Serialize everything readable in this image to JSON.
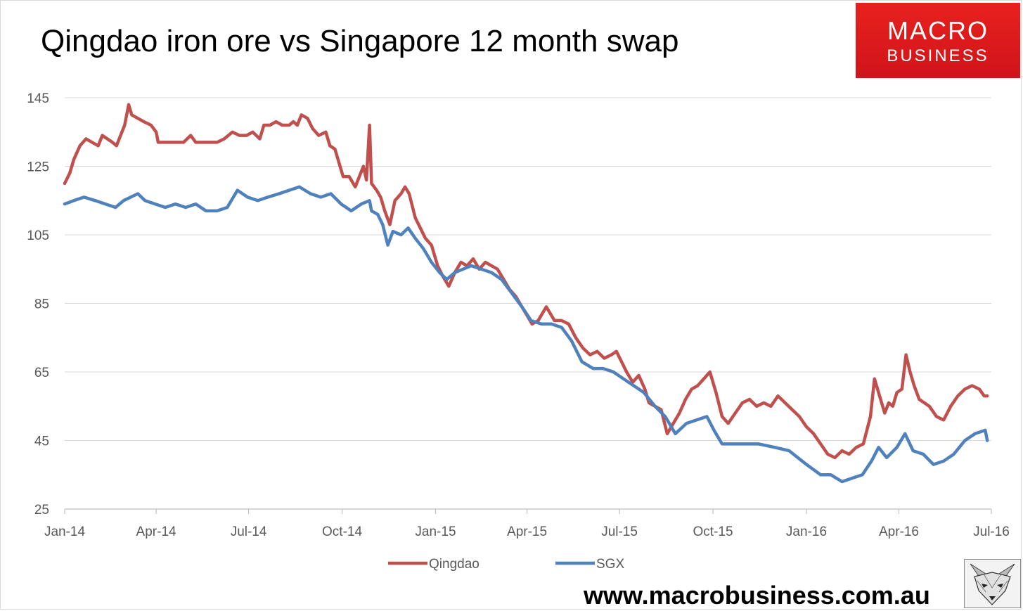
{
  "brand": {
    "line1": "MACRO",
    "line2": "BUSINESS",
    "color": "#e01b1c"
  },
  "website": "www.macrobusiness.com.au",
  "mascot_icon": "fox-icon",
  "chart_data": {
    "type": "line",
    "title": "Qingdao iron ore vs Singapore 12 month swap",
    "xlabel": "",
    "ylabel": "",
    "ylim": [
      25,
      145
    ],
    "y_ticks": [
      25,
      45,
      65,
      85,
      105,
      125,
      145
    ],
    "x_ticks": [
      {
        "label": "Jan-14",
        "date": "2014-01-01"
      },
      {
        "label": "Apr-14",
        "date": "2014-04-01"
      },
      {
        "label": "Jul-14",
        "date": "2014-07-01"
      },
      {
        "label": "Oct-14",
        "date": "2014-10-01"
      },
      {
        "label": "Jan-15",
        "date": "2015-01-01"
      },
      {
        "label": "Apr-15",
        "date": "2015-04-01"
      },
      {
        "label": "Jul-15",
        "date": "2015-07-01"
      },
      {
        "label": "Oct-15",
        "date": "2015-10-01"
      },
      {
        "label": "Jan-16",
        "date": "2016-01-01"
      },
      {
        "label": "Apr-16",
        "date": "2016-04-01"
      },
      {
        "label": "Jul-16",
        "date": "2016-07-01"
      }
    ],
    "xlim": [
      "2014-01-01",
      "2016-07-01"
    ],
    "grid": "horizontal",
    "legend": "bottom",
    "series": [
      {
        "name": "Qingdao",
        "color": "#c0504d",
        "points": [
          [
            "2014-01-01",
            120
          ],
          [
            "2014-01-06",
            123
          ],
          [
            "2014-01-10",
            127
          ],
          [
            "2014-01-16",
            131
          ],
          [
            "2014-01-22",
            133
          ],
          [
            "2014-01-28",
            132
          ],
          [
            "2014-02-03",
            131
          ],
          [
            "2014-02-07",
            134
          ],
          [
            "2014-02-12",
            133
          ],
          [
            "2014-02-17",
            132
          ],
          [
            "2014-02-21",
            131
          ],
          [
            "2014-02-25",
            134
          ],
          [
            "2014-03-01",
            137
          ],
          [
            "2014-03-05",
            143
          ],
          [
            "2014-03-08",
            140
          ],
          [
            "2014-03-14",
            139
          ],
          [
            "2014-03-20",
            138
          ],
          [
            "2014-03-27",
            137
          ],
          [
            "2014-04-01",
            135
          ],
          [
            "2014-04-03",
            132
          ],
          [
            "2014-04-10",
            132
          ],
          [
            "2014-04-20",
            132
          ],
          [
            "2014-04-28",
            132
          ],
          [
            "2014-05-05",
            134
          ],
          [
            "2014-05-10",
            132
          ],
          [
            "2014-05-20",
            132
          ],
          [
            "2014-05-31",
            132
          ],
          [
            "2014-06-07",
            133
          ],
          [
            "2014-06-15",
            135
          ],
          [
            "2014-06-22",
            134
          ],
          [
            "2014-06-29",
            134
          ],
          [
            "2014-07-05",
            135
          ],
          [
            "2014-07-12",
            133
          ],
          [
            "2014-07-16",
            137
          ],
          [
            "2014-07-22",
            137
          ],
          [
            "2014-07-28",
            138
          ],
          [
            "2014-08-03",
            137
          ],
          [
            "2014-08-10",
            137
          ],
          [
            "2014-08-14",
            138
          ],
          [
            "2014-08-18",
            137
          ],
          [
            "2014-08-22",
            140
          ],
          [
            "2014-08-28",
            139
          ],
          [
            "2014-09-02",
            136
          ],
          [
            "2014-09-08",
            134
          ],
          [
            "2014-09-15",
            135
          ],
          [
            "2014-09-19",
            131
          ],
          [
            "2014-09-24",
            130
          ],
          [
            "2014-09-28",
            126
          ],
          [
            "2014-10-02",
            122
          ],
          [
            "2014-10-08",
            122
          ],
          [
            "2014-10-14",
            119
          ],
          [
            "2014-10-18",
            122
          ],
          [
            "2014-10-22",
            125
          ],
          [
            "2014-10-25",
            121
          ],
          [
            "2014-10-28",
            137
          ],
          [
            "2014-10-30",
            120
          ],
          [
            "2014-11-04",
            118
          ],
          [
            "2014-11-08",
            116
          ],
          [
            "2014-11-12",
            112
          ],
          [
            "2014-11-17",
            108
          ],
          [
            "2014-11-22",
            115
          ],
          [
            "2014-11-28",
            117
          ],
          [
            "2014-12-02",
            119
          ],
          [
            "2014-12-06",
            117
          ],
          [
            "2014-12-12",
            110
          ],
          [
            "2014-12-17",
            107
          ],
          [
            "2014-12-22",
            104
          ],
          [
            "2014-12-28",
            102
          ],
          [
            "2015-01-03",
            96
          ],
          [
            "2015-01-08",
            93
          ],
          [
            "2015-01-14",
            90
          ],
          [
            "2015-01-20",
            94
          ],
          [
            "2015-01-26",
            97
          ],
          [
            "2015-02-01",
            96
          ],
          [
            "2015-02-07",
            98
          ],
          [
            "2015-02-13",
            95
          ],
          [
            "2015-02-19",
            97
          ],
          [
            "2015-02-25",
            96
          ],
          [
            "2015-03-03",
            95
          ],
          [
            "2015-03-09",
            92
          ],
          [
            "2015-03-15",
            89
          ],
          [
            "2015-03-21",
            87
          ],
          [
            "2015-03-27",
            84
          ],
          [
            "2015-04-02",
            81
          ],
          [
            "2015-04-06",
            79
          ],
          [
            "2015-04-12",
            80
          ],
          [
            "2015-04-16",
            82
          ],
          [
            "2015-04-20",
            84
          ],
          [
            "2015-04-24",
            82
          ],
          [
            "2015-04-28",
            80
          ],
          [
            "2015-05-05",
            80
          ],
          [
            "2015-05-12",
            79
          ],
          [
            "2015-05-19",
            75
          ],
          [
            "2015-05-26",
            72
          ],
          [
            "2015-06-02",
            70
          ],
          [
            "2015-06-09",
            71
          ],
          [
            "2015-06-16",
            69
          ],
          [
            "2015-06-23",
            70
          ],
          [
            "2015-06-28",
            71
          ],
          [
            "2015-07-03",
            68
          ],
          [
            "2015-07-08",
            65
          ],
          [
            "2015-07-14",
            62
          ],
          [
            "2015-07-20",
            64
          ],
          [
            "2015-07-26",
            60
          ],
          [
            "2015-07-30",
            56
          ],
          [
            "2015-08-05",
            55
          ],
          [
            "2015-08-11",
            54
          ],
          [
            "2015-08-17",
            47
          ],
          [
            "2015-08-23",
            50
          ],
          [
            "2015-08-29",
            53
          ],
          [
            "2015-09-04",
            57
          ],
          [
            "2015-09-10",
            60
          ],
          [
            "2015-09-16",
            61
          ],
          [
            "2015-09-22",
            63
          ],
          [
            "2015-09-28",
            65
          ],
          [
            "2015-10-04",
            59
          ],
          [
            "2015-10-10",
            52
          ],
          [
            "2015-10-16",
            50
          ],
          [
            "2015-10-23",
            53
          ],
          [
            "2015-10-30",
            56
          ],
          [
            "2015-11-06",
            57
          ],
          [
            "2015-11-13",
            55
          ],
          [
            "2015-11-20",
            56
          ],
          [
            "2015-11-27",
            55
          ],
          [
            "2015-12-04",
            58
          ],
          [
            "2015-12-11",
            56
          ],
          [
            "2015-12-18",
            54
          ],
          [
            "2015-12-25",
            52
          ],
          [
            "2016-01-01",
            49
          ],
          [
            "2016-01-08",
            47
          ],
          [
            "2016-01-15",
            44
          ],
          [
            "2016-01-22",
            41
          ],
          [
            "2016-01-29",
            40
          ],
          [
            "2016-02-05",
            42
          ],
          [
            "2016-02-12",
            41
          ],
          [
            "2016-02-19",
            43
          ],
          [
            "2016-02-26",
            44
          ],
          [
            "2016-03-04",
            52
          ],
          [
            "2016-03-08",
            63
          ],
          [
            "2016-03-13",
            58
          ],
          [
            "2016-03-18",
            53
          ],
          [
            "2016-03-22",
            56
          ],
          [
            "2016-03-26",
            55
          ],
          [
            "2016-03-30",
            59
          ],
          [
            "2016-04-04",
            60
          ],
          [
            "2016-04-08",
            70
          ],
          [
            "2016-04-12",
            65
          ],
          [
            "2016-04-16",
            61
          ],
          [
            "2016-04-21",
            57
          ],
          [
            "2016-04-26",
            56
          ],
          [
            "2016-05-01",
            55
          ],
          [
            "2016-05-08",
            52
          ],
          [
            "2016-05-15",
            51
          ],
          [
            "2016-05-22",
            55
          ],
          [
            "2016-05-29",
            58
          ],
          [
            "2016-06-05",
            60
          ],
          [
            "2016-06-12",
            61
          ],
          [
            "2016-06-19",
            60
          ],
          [
            "2016-06-24",
            58
          ],
          [
            "2016-06-27",
            58
          ]
        ]
      },
      {
        "name": "SGX",
        "color": "#4f81bd",
        "points": [
          [
            "2014-01-01",
            114
          ],
          [
            "2014-01-10",
            115
          ],
          [
            "2014-01-20",
            116
          ],
          [
            "2014-01-31",
            115
          ],
          [
            "2014-02-10",
            114
          ],
          [
            "2014-02-20",
            113
          ],
          [
            "2014-02-28",
            115
          ],
          [
            "2014-03-07",
            116
          ],
          [
            "2014-03-14",
            117
          ],
          [
            "2014-03-21",
            115
          ],
          [
            "2014-03-31",
            114
          ],
          [
            "2014-04-10",
            113
          ],
          [
            "2014-04-20",
            114
          ],
          [
            "2014-04-30",
            113
          ],
          [
            "2014-05-10",
            114
          ],
          [
            "2014-05-20",
            112
          ],
          [
            "2014-05-31",
            112
          ],
          [
            "2014-06-10",
            113
          ],
          [
            "2014-06-20",
            118
          ],
          [
            "2014-06-30",
            116
          ],
          [
            "2014-07-10",
            115
          ],
          [
            "2014-07-20",
            116
          ],
          [
            "2014-07-31",
            117
          ],
          [
            "2014-08-10",
            118
          ],
          [
            "2014-08-20",
            119
          ],
          [
            "2014-08-31",
            117
          ],
          [
            "2014-09-10",
            116
          ],
          [
            "2014-09-20",
            117
          ],
          [
            "2014-09-30",
            114
          ],
          [
            "2014-10-10",
            112
          ],
          [
            "2014-10-20",
            114
          ],
          [
            "2014-10-28",
            115
          ],
          [
            "2014-10-30",
            112
          ],
          [
            "2014-11-05",
            111
          ],
          [
            "2014-11-10",
            108
          ],
          [
            "2014-11-15",
            102
          ],
          [
            "2014-11-20",
            106
          ],
          [
            "2014-11-28",
            105
          ],
          [
            "2014-12-05",
            107
          ],
          [
            "2014-12-12",
            104
          ],
          [
            "2014-12-20",
            101
          ],
          [
            "2014-12-28",
            97
          ],
          [
            "2015-01-05",
            94
          ],
          [
            "2015-01-12",
            92
          ],
          [
            "2015-01-20",
            94
          ],
          [
            "2015-01-28",
            95
          ],
          [
            "2015-02-05",
            96
          ],
          [
            "2015-02-15",
            95
          ],
          [
            "2015-02-25",
            94
          ],
          [
            "2015-03-07",
            92
          ],
          [
            "2015-03-17",
            88
          ],
          [
            "2015-03-27",
            84
          ],
          [
            "2015-04-05",
            80
          ],
          [
            "2015-04-15",
            79
          ],
          [
            "2015-04-25",
            79
          ],
          [
            "2015-05-05",
            78
          ],
          [
            "2015-05-15",
            74
          ],
          [
            "2015-05-25",
            68
          ],
          [
            "2015-06-05",
            66
          ],
          [
            "2015-06-15",
            66
          ],
          [
            "2015-06-25",
            65
          ],
          [
            "2015-07-05",
            63
          ],
          [
            "2015-07-15",
            61
          ],
          [
            "2015-07-25",
            59
          ],
          [
            "2015-08-05",
            55
          ],
          [
            "2015-08-15",
            52
          ],
          [
            "2015-08-25",
            47
          ],
          [
            "2015-09-05",
            50
          ],
          [
            "2015-09-15",
            51
          ],
          [
            "2015-09-25",
            52
          ],
          [
            "2015-10-02",
            48
          ],
          [
            "2015-10-10",
            44
          ],
          [
            "2015-10-20",
            44
          ],
          [
            "2015-11-01",
            44
          ],
          [
            "2015-11-15",
            44
          ],
          [
            "2015-12-01",
            43
          ],
          [
            "2015-12-15",
            42
          ],
          [
            "2016-01-01",
            38
          ],
          [
            "2016-01-15",
            35
          ],
          [
            "2016-01-25",
            35
          ],
          [
            "2016-02-05",
            33
          ],
          [
            "2016-02-15",
            34
          ],
          [
            "2016-02-25",
            35
          ],
          [
            "2016-03-05",
            39
          ],
          [
            "2016-03-12",
            43
          ],
          [
            "2016-03-20",
            40
          ],
          [
            "2016-03-30",
            43
          ],
          [
            "2016-04-07",
            47
          ],
          [
            "2016-04-15",
            42
          ],
          [
            "2016-04-25",
            41
          ],
          [
            "2016-05-05",
            38
          ],
          [
            "2016-05-15",
            39
          ],
          [
            "2016-05-25",
            41
          ],
          [
            "2016-06-05",
            45
          ],
          [
            "2016-06-15",
            47
          ],
          [
            "2016-06-25",
            48
          ],
          [
            "2016-06-27",
            45
          ]
        ]
      }
    ]
  }
}
